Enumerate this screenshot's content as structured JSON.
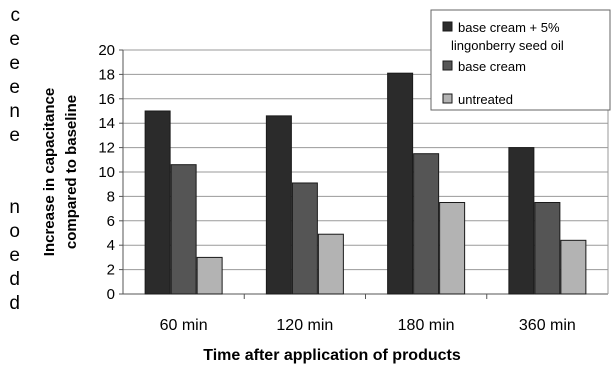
{
  "cropped_left_text": [
    "c",
    "e",
    "e",
    "e",
    "n",
    "e",
    "",
    "n",
    "o",
    "e",
    "d",
    "d"
  ],
  "chart_data": {
    "type": "bar",
    "title": "",
    "xlabel": "Time after application of products",
    "ylabel": "Increase in capacitance compared to baseline",
    "ylabel_lines": [
      "Increase in capacitance",
      "compared to baseline"
    ],
    "categories": [
      "60 min",
      "120 min",
      "180 min",
      "360 min"
    ],
    "ylim": [
      0,
      20
    ],
    "yticks": [
      "0",
      "2",
      "4",
      "6",
      "8",
      "10",
      "12",
      "14",
      "16",
      "18",
      "20"
    ],
    "grid": "horizontal",
    "legend_position": "top-right",
    "series": [
      {
        "name": "base cream + 5% lingonberry seed oil",
        "legend_lines": [
          "base cream + 5%",
          "lingonberry seed oil"
        ],
        "color": "#2b2b2b",
        "values": [
          15.0,
          14.6,
          18.1,
          12.0
        ]
      },
      {
        "name": "base cream",
        "legend_lines": [
          "base cream"
        ],
        "color": "#555555",
        "values": [
          10.6,
          9.1,
          11.5,
          7.5
        ]
      },
      {
        "name": "untreated",
        "legend_lines": [
          "untreated"
        ],
        "color": "#b3b3b3",
        "values": [
          3.0,
          4.9,
          7.5,
          4.4
        ]
      }
    ]
  }
}
